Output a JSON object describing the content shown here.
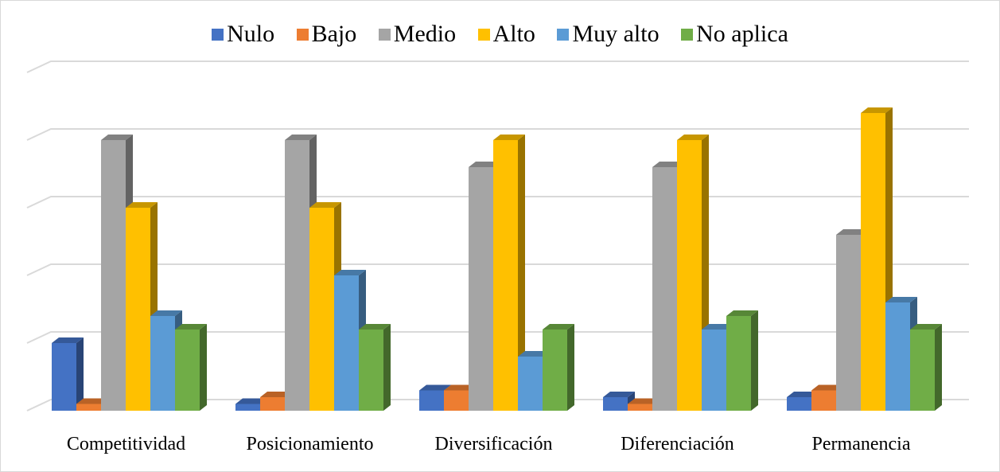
{
  "chart_data": {
    "type": "bar",
    "three_d": true,
    "categories": [
      "Competitividad",
      "Posicionamiento",
      "Diversificación",
      "Diferenciación",
      "Permanencia"
    ],
    "series": [
      {
        "name": "Nulo",
        "color": "#4472C4",
        "values": [
          10,
          1,
          3,
          2,
          2
        ]
      },
      {
        "name": "Bajo",
        "color": "#ED7D31",
        "values": [
          1,
          2,
          3,
          1,
          3
        ]
      },
      {
        "name": "Medio",
        "color": "#A5A5A5",
        "values": [
          40,
          40,
          36,
          36,
          26
        ]
      },
      {
        "name": "Alto",
        "color": "#FFC000",
        "values": [
          30,
          30,
          40,
          40,
          44
        ]
      },
      {
        "name": "Muy alto",
        "color": "#5B9BD5",
        "values": [
          14,
          20,
          8,
          12,
          16
        ]
      },
      {
        "name": "No aplica",
        "color": "#70AD47",
        "values": [
          12,
          12,
          12,
          14,
          12
        ]
      }
    ],
    "ylim": [
      0,
      50
    ],
    "gridlines": 5,
    "y_tick_labels_visible": false,
    "legend_position": "top",
    "grid": true
  }
}
